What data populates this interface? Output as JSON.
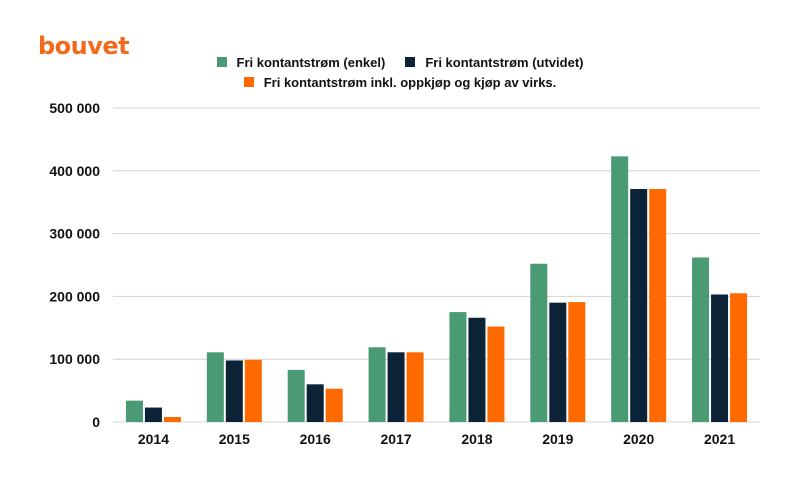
{
  "brand": {
    "logo_text": "bouvet",
    "color": "#f26a1b"
  },
  "chart_data": {
    "type": "bar",
    "title": "",
    "xlabel": "",
    "ylabel": "",
    "categories": [
      "2014",
      "2015",
      "2016",
      "2017",
      "2018",
      "2019",
      "2020",
      "2021"
    ],
    "series": [
      {
        "name": "Fri kontantstrøm (enkel)",
        "color": "#4a9a74",
        "values": [
          34000,
          111000,
          83000,
          119000,
          175000,
          252000,
          423000,
          262000
        ]
      },
      {
        "name": "Fri kontantstrøm (utvidet)",
        "color": "#0c2236",
        "values": [
          23000,
          98000,
          60000,
          111000,
          166000,
          190000,
          371000,
          203000
        ]
      },
      {
        "name": "Fri kontantstrøm inkl. oppkjøp og kjøp av virks.",
        "color": "#ff6a00",
        "values": [
          8000,
          99000,
          53000,
          111000,
          152000,
          191000,
          371000,
          205000
        ]
      }
    ],
    "ylim": [
      0,
      500000
    ],
    "yticks": [
      {
        "value": 0,
        "label": "0"
      },
      {
        "value": 100000,
        "label": "100 000"
      },
      {
        "value": 200000,
        "label": "200 000"
      },
      {
        "value": 300000,
        "label": "300 000"
      },
      {
        "value": 400000,
        "label": "400 000"
      },
      {
        "value": 500000,
        "label": "500 000"
      }
    ],
    "grid": true,
    "legend_position": "top-center"
  }
}
